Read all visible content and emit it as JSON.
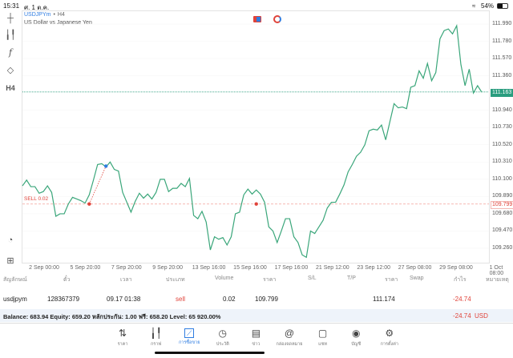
{
  "status_bar": {
    "time": "15:31",
    "date": "ศ. 1 ต.ค.",
    "battery": "54%"
  },
  "chart_header": {
    "symbol": "USDJPYm",
    "separator": "•",
    "timeframe": "H4",
    "description": "US Dollar vs Japanese Yen"
  },
  "left_toolbar": {
    "timeframe_label": "H4"
  },
  "colors": {
    "line": "#3aa67a",
    "sell": "#e0433a",
    "marker_close": "#2f7de1",
    "current_price": "#2a9d7f",
    "accent": "#2f7de1"
  },
  "chart_data": {
    "type": "line",
    "y_ticks": [
      "111.990",
      "111.780",
      "111.570",
      "111.360",
      "110.940",
      "110.730",
      "110.520",
      "110.310",
      "110.100",
      "109.890",
      "109.680",
      "109.470",
      "109.260"
    ],
    "ylim": [
      109.17,
      112.16
    ],
    "x_ticks": [
      "2 Sep 00:00",
      "5 Sep 20:00",
      "7 Sep 20:00",
      "9 Sep 20:00",
      "13 Sep 16:00",
      "15 Sep 16:00",
      "17 Sep 16:00",
      "21 Sep 12:00",
      "23 Sep 12:00",
      "27 Sep 08:00",
      "29 Sep 08:00",
      "1 Oct 08:00"
    ],
    "values": [
      110.02,
      110.09,
      110.01,
      110.01,
      109.93,
      109.95,
      110.02,
      109.94,
      109.65,
      109.68,
      109.68,
      109.8,
      109.88,
      109.86,
      109.84,
      109.81,
      109.91,
      110.09,
      110.28,
      110.29,
      110.25,
      110.31,
      110.22,
      110.2,
      109.94,
      109.82,
      109.7,
      109.83,
      109.93,
      109.87,
      109.92,
      109.86,
      109.94,
      110.1,
      110.1,
      109.95,
      109.99,
      109.99,
      110.05,
      110.01,
      110.11,
      109.66,
      109.62,
      109.71,
      109.58,
      109.24,
      109.4,
      109.37,
      109.39,
      109.3,
      109.4,
      109.68,
      109.7,
      109.91,
      109.98,
      109.92,
      109.97,
      109.92,
      109.82,
      109.52,
      109.47,
      109.33,
      109.47,
      109.62,
      109.62,
      109.4,
      109.33,
      109.18,
      109.15,
      109.47,
      109.44,
      109.52,
      109.6,
      109.75,
      109.82,
      109.82,
      109.92,
      110.03,
      110.19,
      110.28,
      110.38,
      110.43,
      110.52,
      110.69,
      110.71,
      110.7,
      110.76,
      110.58,
      110.8,
      111.02,
      110.97,
      110.98,
      110.96,
      111.22,
      111.24,
      111.42,
      111.33,
      111.51,
      111.3,
      111.4,
      111.81,
      111.91,
      111.93,
      111.87,
      111.97,
      111.5,
      111.24,
      111.44,
      111.15,
      111.24,
      111.16
    ],
    "current_price": "111.163",
    "sell_line": {
      "label": "SELL 0.02",
      "price": "109.799"
    },
    "markers": [
      {
        "type": "sell-entry",
        "index": 16,
        "price": 109.799
      },
      {
        "type": "close",
        "index": 20,
        "price": 110.26
      },
      {
        "type": "sell-entry",
        "index": 56,
        "price": 109.799
      }
    ]
  },
  "table": {
    "headers": [
      "สัญลักษณ์",
      "ตั๋ว",
      "เวลา",
      "ประเภท",
      "Volume",
      "ราคา",
      "S/L",
      "T/P",
      "ราคา",
      "Swap",
      "กำไร",
      "หมายเหตุ"
    ],
    "row": {
      "symbol": "usdjpym",
      "ticket": "128367379",
      "time": "09.17 01:38",
      "type": "sell",
      "volume": "0.02",
      "open_price": "109.799",
      "sl": "",
      "tp": "",
      "price": "111.174",
      "swap": "",
      "profit": "-24.74",
      "comment": ""
    },
    "balance_text": "Balance: 683.94 Equity: 659.20 หลักประกัน: 1.00 ฟรี: 658.20 Level: 65 920.00%",
    "total_profit": "-24.74",
    "currency": "USD"
  },
  "nav": [
    {
      "label": "ราคา",
      "icon": "quotes-icon"
    },
    {
      "label": "กราฟ",
      "icon": "chart-icon"
    },
    {
      "label": "การซื้อขาย",
      "icon": "trade-icon",
      "active": true
    },
    {
      "label": "ประวัติ",
      "icon": "history-icon"
    },
    {
      "label": "ข่าว",
      "icon": "news-icon"
    },
    {
      "label": "กล่องจดหมาย",
      "icon": "mailbox-icon"
    },
    {
      "label": "แชท",
      "icon": "chat-icon"
    },
    {
      "label": "บัญชี",
      "icon": "account-icon"
    },
    {
      "label": "การตั้งค่า",
      "icon": "settings-icon"
    }
  ]
}
